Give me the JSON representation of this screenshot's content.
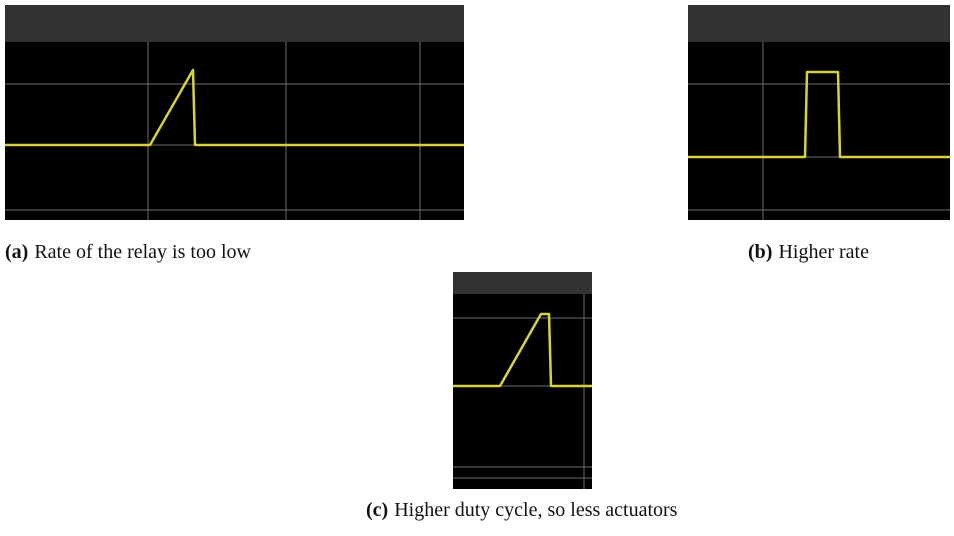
{
  "figures": [
    {
      "label": "(a)",
      "caption": "Rate of the relay is too low"
    },
    {
      "label": "(b)",
      "caption": "Higher rate"
    },
    {
      "label": "(c)",
      "caption": "Higher duty cycle, so less actuators"
    }
  ]
}
